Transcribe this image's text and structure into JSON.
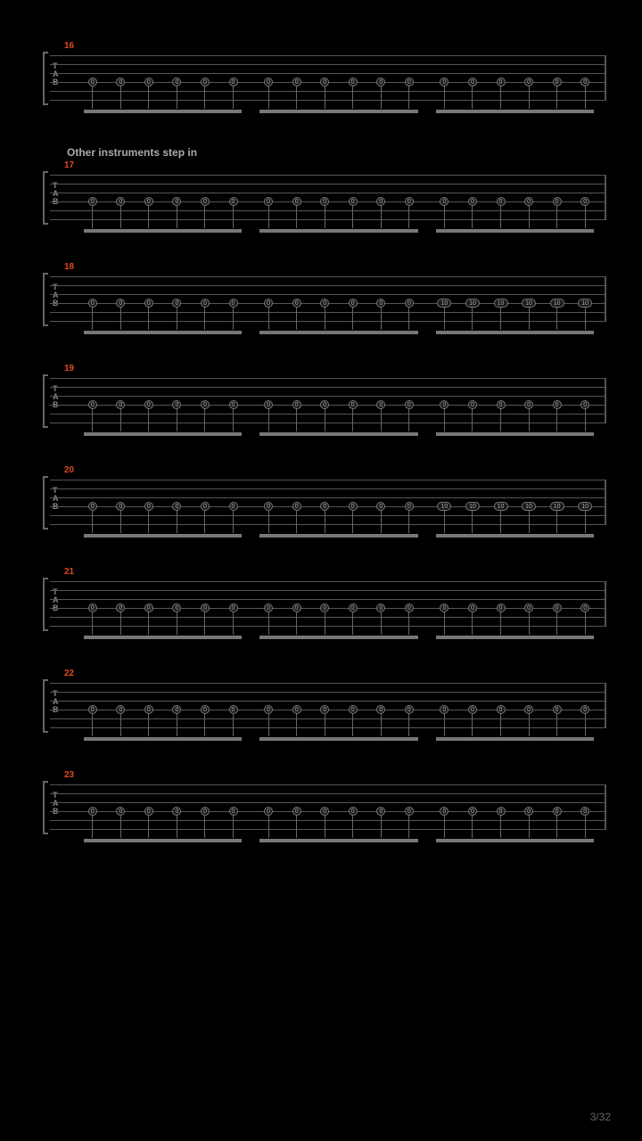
{
  "page": {
    "current": 3,
    "total": 32
  },
  "section_label": "Other instruments step in",
  "staff_color": "#555",
  "measure_color": "#e04a1f",
  "note_fill": "#1a1a1a",
  "note_border": "#777",
  "measures": [
    {
      "number": 16,
      "groups": [
        {
          "frets": [
            "0",
            "0",
            "0",
            "0",
            "0",
            "0"
          ]
        },
        {
          "frets": [
            "0",
            "0",
            "0",
            "0",
            "0",
            "0"
          ]
        },
        {
          "frets": [
            "0",
            "0",
            "0",
            "0",
            "0",
            "0"
          ]
        }
      ],
      "pre_label": null
    },
    {
      "number": 17,
      "groups": [
        {
          "frets": [
            "0",
            "0",
            "0",
            "0",
            "0",
            "0"
          ]
        },
        {
          "frets": [
            "0",
            "0",
            "0",
            "0",
            "0",
            "0"
          ]
        },
        {
          "frets": [
            "0",
            "0",
            "0",
            "0",
            "0",
            "0"
          ]
        }
      ],
      "pre_label": "Other instruments step in"
    },
    {
      "number": 18,
      "groups": [
        {
          "frets": [
            "0",
            "0",
            "0",
            "0",
            "0",
            "0"
          ]
        },
        {
          "frets": [
            "0",
            "0",
            "0",
            "0",
            "0",
            "0"
          ]
        },
        {
          "frets": [
            "10",
            "10",
            "10",
            "10",
            "10",
            "10"
          ]
        }
      ],
      "pre_label": null
    },
    {
      "number": 19,
      "groups": [
        {
          "frets": [
            "0",
            "0",
            "0",
            "0",
            "0",
            "0"
          ]
        },
        {
          "frets": [
            "0",
            "0",
            "0",
            "0",
            "0",
            "0"
          ]
        },
        {
          "frets": [
            "0",
            "0",
            "0",
            "0",
            "0",
            "0"
          ]
        }
      ],
      "pre_label": null
    },
    {
      "number": 20,
      "groups": [
        {
          "frets": [
            "0",
            "0",
            "0",
            "0",
            "0",
            "0"
          ]
        },
        {
          "frets": [
            "0",
            "0",
            "0",
            "0",
            "0",
            "0"
          ]
        },
        {
          "frets": [
            "10",
            "10",
            "10",
            "10",
            "10",
            "10"
          ]
        }
      ],
      "pre_label": null
    },
    {
      "number": 21,
      "groups": [
        {
          "frets": [
            "0",
            "0",
            "0",
            "0",
            "0",
            "0"
          ]
        },
        {
          "frets": [
            "0",
            "0",
            "0",
            "0",
            "0",
            "0"
          ]
        },
        {
          "frets": [
            "0",
            "0",
            "0",
            "0",
            "0",
            "0"
          ]
        }
      ],
      "pre_label": null
    },
    {
      "number": 22,
      "groups": [
        {
          "frets": [
            "0",
            "0",
            "0",
            "0",
            "0",
            "0"
          ]
        },
        {
          "frets": [
            "0",
            "0",
            "0",
            "0",
            "0",
            "0"
          ]
        },
        {
          "frets": [
            "0",
            "0",
            "0",
            "0",
            "0",
            "0"
          ]
        }
      ],
      "pre_label": null
    },
    {
      "number": 23,
      "groups": [
        {
          "frets": [
            "0",
            "0",
            "0",
            "0",
            "0",
            "0"
          ]
        },
        {
          "frets": [
            "0",
            "0",
            "0",
            "0",
            "0",
            "0"
          ]
        },
        {
          "frets": [
            "0",
            "0",
            "0",
            "0",
            "0",
            "0"
          ]
        }
      ],
      "pre_label": null
    }
  ],
  "tab_letters": [
    "T",
    "A",
    "B"
  ],
  "string_count": 6
}
